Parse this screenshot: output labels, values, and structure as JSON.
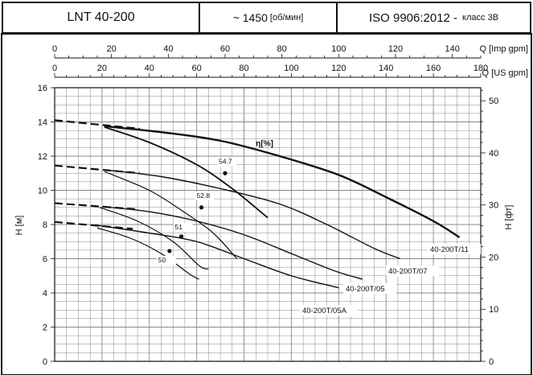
{
  "header": {
    "model": "LNT 40-200",
    "speed": "~ 1450",
    "speed_unit": "[об/мин]",
    "standard": "ISO 9906:2012 -",
    "standard_class": "класс 3B"
  },
  "chart_data": {
    "type": "line",
    "axes": {
      "x_us": {
        "label": "Q [US gpm]",
        "range": [
          0,
          180
        ],
        "ticks": [
          0,
          20,
          40,
          60,
          80,
          100,
          120,
          140,
          160,
          180
        ]
      },
      "x_imp": {
        "label": "Q [Imp gpm]",
        "range": [
          0,
          150
        ],
        "ticks": [
          0,
          20,
          40,
          60,
          80,
          100,
          120,
          140
        ]
      },
      "y_left": {
        "label": "H [м]",
        "range": [
          0,
          16
        ],
        "ticks": [
          0,
          2,
          4,
          6,
          8,
          10,
          12,
          14,
          16
        ]
      },
      "y_right": {
        "label": "H [фт]",
        "range": [
          0,
          52.5
        ],
        "ticks": [
          0,
          10,
          20,
          30,
          40,
          50
        ]
      }
    },
    "grid": true,
    "series": [
      {
        "name": "40-200T/11",
        "dashed": [
          [
            0,
            14.1
          ],
          [
            36,
            13.6
          ]
        ],
        "solid": [
          [
            21,
            13.75
          ],
          [
            45,
            13.4
          ],
          [
            70,
            12.9
          ],
          [
            95,
            12.0
          ],
          [
            120,
            10.9
          ],
          [
            140,
            9.6
          ],
          [
            160,
            8.2
          ],
          [
            171,
            7.25
          ]
        ]
      },
      {
        "name": "40-200T/07",
        "dashed": [
          [
            0,
            11.45
          ],
          [
            36,
            11.0
          ]
        ],
        "solid": [
          [
            21,
            11.2
          ],
          [
            45,
            10.8
          ],
          [
            70,
            10.1
          ],
          [
            95,
            9.2
          ],
          [
            115,
            8.0
          ],
          [
            135,
            6.6
          ],
          [
            146,
            6.0
          ]
        ]
      },
      {
        "name": "40-200T/05",
        "dashed": [
          [
            0,
            9.25
          ],
          [
            34,
            8.9
          ]
        ],
        "solid": [
          [
            20,
            9.05
          ],
          [
            40,
            8.75
          ],
          [
            60,
            8.2
          ],
          [
            80,
            7.4
          ],
          [
            100,
            6.3
          ],
          [
            118,
            5.3
          ],
          [
            130,
            4.8
          ]
        ]
      },
      {
        "name": "40-200T/05A",
        "dashed": [
          [
            0,
            8.15
          ],
          [
            33,
            7.75
          ]
        ],
        "solid": [
          [
            18,
            7.95
          ],
          [
            40,
            7.5
          ],
          [
            60,
            7.0
          ],
          [
            80,
            6.0
          ],
          [
            100,
            5.0
          ],
          [
            120,
            4.3
          ]
        ]
      }
    ],
    "efficiency": {
      "label": "η[%]",
      "curves": [
        {
          "points": [
            [
              21,
              13.7
            ],
            [
              40,
              12.8
            ],
            [
              60,
              11.5
            ],
            [
              75,
              10.1
            ],
            [
              90,
              8.4
            ]
          ]
        },
        {
          "points": [
            [
              21,
              11.1
            ],
            [
              40,
              10.0
            ],
            [
              55,
              8.7
            ],
            [
              67,
              7.5
            ],
            [
              77,
              6.0
            ]
          ]
        },
        {
          "points": [
            [
              19,
              9.0
            ],
            [
              35,
              8.2
            ],
            [
              50,
              7.0
            ],
            [
              61,
              5.6
            ],
            [
              65,
              5.4
            ]
          ]
        },
        {
          "points": [
            [
              18,
              7.8
            ],
            [
              32,
              7.2
            ],
            [
              45,
              6.3
            ],
            [
              57,
              5.1
            ],
            [
              61,
              4.8
            ]
          ]
        }
      ],
      "markers": [
        {
          "label": "54.7",
          "q": 72,
          "h": 11.0
        },
        {
          "label": "52.8",
          "q": 62,
          "h": 9.0
        },
        {
          "label": "51",
          "q": 53.5,
          "h": 7.3
        },
        {
          "label": "50",
          "q": 48.5,
          "h": 6.45
        }
      ]
    }
  },
  "colors": {
    "curve": "#111111",
    "grid": "#888888",
    "frame": "#111111"
  }
}
